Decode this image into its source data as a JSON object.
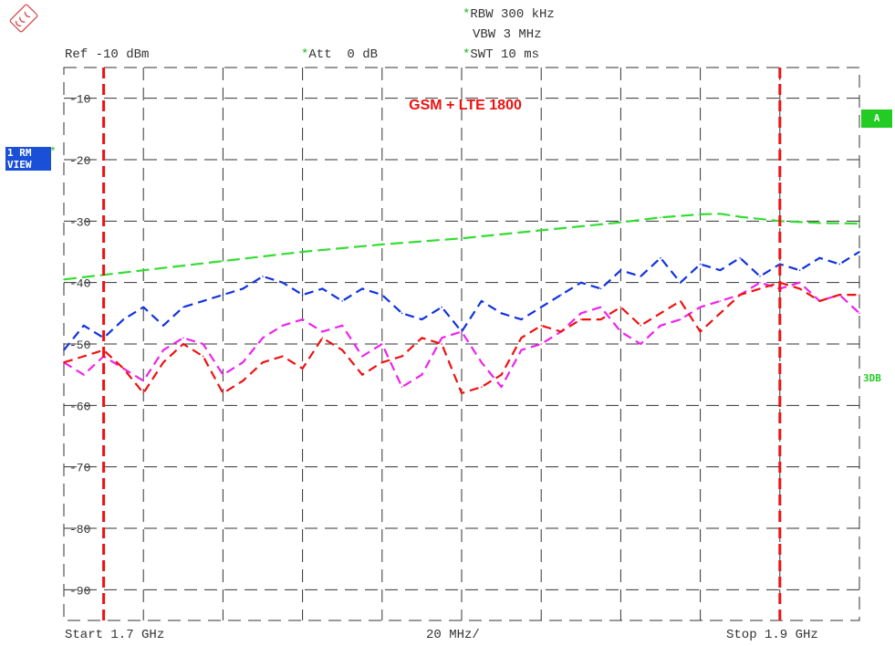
{
  "header": {
    "rbw": "RBW 300 kHz",
    "vbw": "VBW 3 MHz",
    "ref": "Ref -10 dBm",
    "att": "Att  0 dB",
    "swt": "SWT 10 ms"
  },
  "side": {
    "trace_badge_top": "1 RM",
    "trace_badge_bottom": "VIEW",
    "marker_a": "A",
    "limit_label": "3DB"
  },
  "footer": {
    "start": "Start 1.7 GHz",
    "span": "20 MHz/",
    "stop": "Stop 1.9 GHz"
  },
  "colors": {
    "grid": "#333333",
    "limit_green": "#33dd33",
    "band_red": "#ee1111",
    "trace_blue": "#1133dd",
    "trace_magenta": "#ee22ee",
    "trace_red": "#ee1111",
    "title_red": "#ee1111",
    "badge_blue": "#1a4fd8",
    "star_green": "#22bb22"
  },
  "chart_data": {
    "type": "line",
    "title": "GSM + LTE 1800",
    "xlabel": "",
    "ylabel": "",
    "xunit": "GHz",
    "xlim": [
      1.7,
      1.9
    ],
    "ylim": [
      -95,
      -5
    ],
    "yticks": [
      -10,
      -20,
      -30,
      -40,
      -50,
      -60,
      -70,
      -80,
      -90
    ],
    "ytick_labels": [
      "-10",
      "-20",
      "-30",
      "-40",
      "-50",
      "-60",
      "-70",
      "-80",
      "-90"
    ],
    "grid": true,
    "band_markers_x": [
      1.71,
      1.88
    ],
    "series": [
      {
        "color": "#33dd33",
        "style": "dashed",
        "x": [
          1.7,
          1.72,
          1.74,
          1.76,
          1.78,
          1.8,
          1.82,
          1.84,
          1.85,
          1.86,
          1.865,
          1.87,
          1.88,
          1.89,
          1.9
        ],
        "y": [
          -39.5,
          -38.0,
          -36.5,
          -35.0,
          -33.8,
          -32.8,
          -31.5,
          -30.2,
          -29.4,
          -28.9,
          -28.8,
          -29.3,
          -30.0,
          -30.3,
          -30.4
        ]
      },
      {
        "color": "#1133dd",
        "style": "dashed",
        "x": [
          1.7,
          1.705,
          1.71,
          1.715,
          1.72,
          1.725,
          1.73,
          1.735,
          1.74,
          1.745,
          1.75,
          1.755,
          1.76,
          1.765,
          1.77,
          1.775,
          1.78,
          1.785,
          1.79,
          1.795,
          1.8,
          1.805,
          1.81,
          1.815,
          1.82,
          1.825,
          1.83,
          1.835,
          1.84,
          1.845,
          1.85,
          1.855,
          1.86,
          1.865,
          1.87,
          1.875,
          1.88,
          1.885,
          1.89,
          1.895,
          1.9
        ],
        "y": [
          -51,
          -47,
          -49,
          -46,
          -44,
          -47,
          -44,
          -43,
          -42,
          -41,
          -39,
          -40,
          -42,
          -41,
          -43,
          -41,
          -42,
          -45,
          -46,
          -44,
          -48,
          -43,
          -45,
          -46,
          -44,
          -42,
          -40,
          -41,
          -38,
          -39,
          -36,
          -40,
          -37,
          -38,
          -36,
          -39,
          -37,
          -38,
          -36,
          -37,
          -35
        ]
      },
      {
        "color": "#ee22ee",
        "style": "dashed",
        "x": [
          1.7,
          1.705,
          1.71,
          1.715,
          1.72,
          1.725,
          1.73,
          1.735,
          1.74,
          1.745,
          1.75,
          1.755,
          1.76,
          1.765,
          1.77,
          1.775,
          1.78,
          1.785,
          1.79,
          1.795,
          1.8,
          1.805,
          1.81,
          1.815,
          1.82,
          1.825,
          1.83,
          1.835,
          1.84,
          1.845,
          1.85,
          1.855,
          1.86,
          1.865,
          1.87,
          1.875,
          1.88,
          1.885,
          1.89,
          1.895,
          1.9
        ],
        "y": [
          -53,
          -55,
          -52,
          -54,
          -56,
          -51,
          -49,
          -50,
          -55,
          -53,
          -49,
          -47,
          -46,
          -48,
          -47,
          -52,
          -50,
          -57,
          -55,
          -49,
          -48,
          -53,
          -57,
          -51,
          -50,
          -48,
          -45,
          -44,
          -48,
          -50,
          -47,
          -46,
          -44,
          -43,
          -42,
          -40,
          -41,
          -40,
          -43,
          -42,
          -45
        ]
      },
      {
        "color": "#ee1111",
        "style": "dashed",
        "x": [
          1.7,
          1.705,
          1.71,
          1.715,
          1.72,
          1.725,
          1.73,
          1.735,
          1.74,
          1.745,
          1.75,
          1.755,
          1.76,
          1.765,
          1.77,
          1.775,
          1.78,
          1.785,
          1.79,
          1.795,
          1.8,
          1.805,
          1.81,
          1.815,
          1.82,
          1.825,
          1.83,
          1.835,
          1.84,
          1.845,
          1.85,
          1.855,
          1.86,
          1.865,
          1.87,
          1.875,
          1.88,
          1.885,
          1.89,
          1.895,
          1.9
        ],
        "y": [
          -53,
          -52,
          -51,
          -54,
          -58,
          -53,
          -50,
          -52,
          -58,
          -56,
          -53,
          -52,
          -54,
          -49,
          -51,
          -55,
          -53,
          -52,
          -49,
          -50,
          -58,
          -57,
          -55,
          -49,
          -47,
          -48,
          -46,
          -46,
          -44,
          -47,
          -45,
          -43,
          -48,
          -45,
          -42,
          -41,
          -40,
          -41,
          -43,
          -42,
          -42
        ]
      }
    ]
  }
}
